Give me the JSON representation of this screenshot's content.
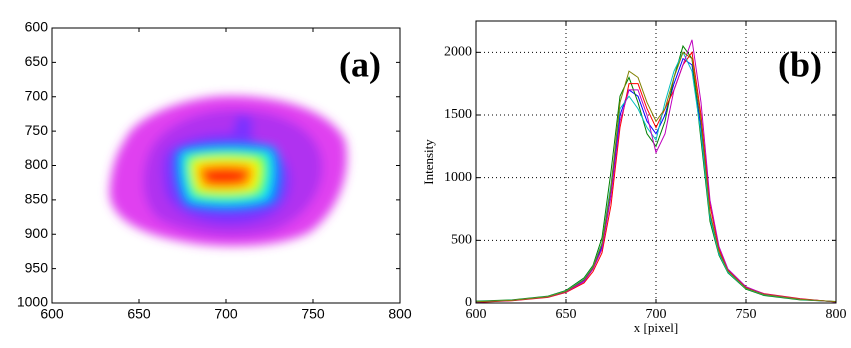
{
  "chart_data": [
    {
      "type": "image",
      "label": "(a)",
      "xlim": [
        600,
        800
      ],
      "xticks": [
        600,
        650,
        700,
        750,
        800
      ],
      "ylim": [
        600,
        1000
      ],
      "yreverse": true,
      "yticks": [
        600,
        650,
        700,
        750,
        800,
        850,
        900,
        950,
        1000
      ],
      "grid": false
    },
    {
      "type": "line",
      "label": "(b)",
      "xlabel": "x [pixel]",
      "ylabel": "Intensity",
      "xlim": [
        600,
        800
      ],
      "xticks": [
        600,
        650,
        700,
        750,
        800
      ],
      "ylim": [
        0,
        2250
      ],
      "yticks": [
        0,
        500,
        1000,
        1500,
        2000
      ],
      "grid": true,
      "x": [
        600,
        620,
        640,
        650,
        660,
        665,
        670,
        675,
        680,
        685,
        690,
        695,
        700,
        705,
        710,
        715,
        720,
        725,
        730,
        735,
        740,
        750,
        760,
        780,
        800
      ],
      "series": [
        {
          "color": "#0000ff",
          "values": [
            10,
            20,
            50,
            90,
            180,
            280,
            450,
            900,
            1500,
            1700,
            1650,
            1450,
            1350,
            1500,
            1750,
            1950,
            1900,
            1400,
            700,
            400,
            250,
            120,
            70,
            30,
            10
          ]
        },
        {
          "color": "#008000",
          "values": [
            15,
            25,
            55,
            100,
            200,
            300,
            520,
            1050,
            1650,
            1800,
            1600,
            1350,
            1250,
            1450,
            1800,
            2050,
            1950,
            1300,
            650,
            380,
            240,
            110,
            60,
            25,
            12
          ]
        },
        {
          "color": "#ff0000",
          "values": [
            5,
            18,
            45,
            85,
            160,
            250,
            400,
            780,
            1400,
            1750,
            1750,
            1550,
            1400,
            1550,
            1700,
            1900,
            2000,
            1500,
            780,
            430,
            260,
            125,
            75,
            35,
            8
          ]
        },
        {
          "color": "#00bfbf",
          "values": [
            12,
            22,
            52,
            95,
            190,
            290,
            480,
            950,
            1550,
            1650,
            1550,
            1400,
            1300,
            1600,
            1850,
            2000,
            1850,
            1350,
            680,
            390,
            245,
            115,
            65,
            28,
            10
          ]
        },
        {
          "color": "#bf00bf",
          "values": [
            8,
            20,
            48,
            88,
            170,
            270,
            430,
            850,
            1450,
            1700,
            1700,
            1500,
            1200,
            1350,
            1700,
            1900,
            2100,
            1600,
            820,
            450,
            270,
            130,
            72,
            32,
            9
          ]
        },
        {
          "color": "#808000",
          "values": [
            10,
            21,
            50,
            92,
            185,
            285,
            470,
            920,
            1600,
            1850,
            1800,
            1600,
            1450,
            1550,
            1800,
            2000,
            1950,
            1450,
            720,
            410,
            255,
            118,
            68,
            30,
            11
          ]
        }
      ]
    }
  ]
}
